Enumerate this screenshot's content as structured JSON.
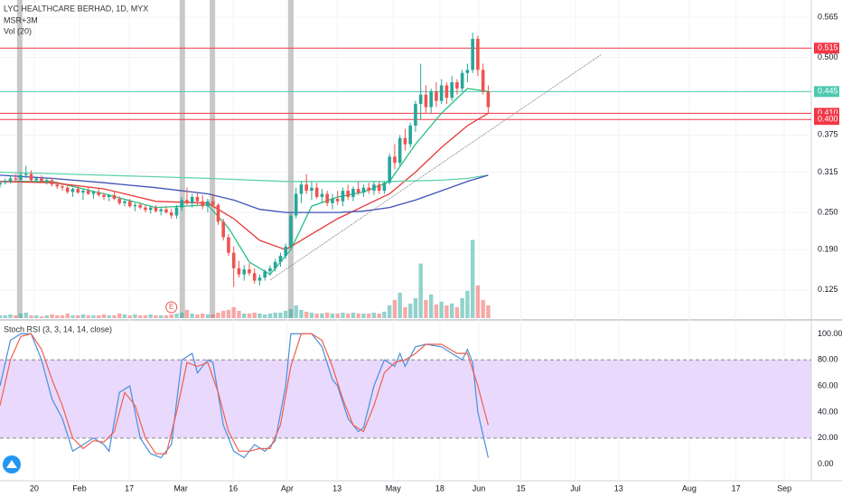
{
  "chart_data": [
    {
      "type": "candlestick",
      "title": "LYC HEALTHCARE BERHAD, 1D, MYX",
      "indicators": [
        "MSR+3M",
        "Vol (20)"
      ],
      "xlim": [
        0,
        156.2
      ],
      "xticks": [
        {
          "value": 6.6,
          "label": "20"
        },
        {
          "value": 15.3,
          "label": "Feb"
        },
        {
          "value": 24.9,
          "label": "17"
        },
        {
          "value": 34.8,
          "label": "Mar"
        },
        {
          "value": 44.9,
          "label": "16"
        },
        {
          "value": 55.3,
          "label": "Apr"
        },
        {
          "value": 64.9,
          "label": "13"
        },
        {
          "value": 75.7,
          "label": "May"
        },
        {
          "value": 84.7,
          "label": "18"
        },
        {
          "value": 92.2,
          "label": "Jun"
        },
        {
          "value": 100.3,
          "label": "15"
        },
        {
          "value": 110.8,
          "label": "Jul"
        },
        {
          "value": 119.1,
          "label": "13"
        },
        {
          "value": 132.7,
          "label": "Aug"
        },
        {
          "value": 141.7,
          "label": "17"
        },
        {
          "value": 151,
          "label": "Sep"
        }
      ],
      "ylim": [
        0.0796,
        0.5927
      ],
      "yticks": [
        0.565,
        {
          "value": 0.5,
          "label": "0.500"
        },
        0.375,
        0.315,
        {
          "value": 0.25,
          "label": "0.250"
        },
        {
          "value": 0.19,
          "label": "0.190"
        },
        0.125
      ],
      "up_color": "#26a69a",
      "down_color": "#ef5350",
      "x": [
        0,
        1,
        2,
        3,
        4,
        5,
        6,
        7,
        8,
        9,
        10,
        11,
        12,
        13,
        14,
        15,
        16,
        17,
        18,
        19,
        20,
        21,
        22,
        23,
        24,
        25,
        26,
        27,
        28,
        29,
        30,
        31,
        32,
        33,
        34,
        35,
        36,
        37,
        38,
        39,
        40,
        41,
        42,
        43,
        44,
        45,
        46,
        47,
        48,
        49,
        50,
        51,
        52,
        53,
        54,
        55,
        56,
        57,
        58,
        59,
        60,
        61,
        62,
        63,
        64,
        65,
        66,
        67,
        68,
        69,
        70,
        71,
        72,
        73,
        74,
        75,
        76,
        77,
        78,
        79,
        80,
        81,
        82,
        83,
        84,
        85,
        86,
        87,
        88,
        89,
        90,
        91,
        92,
        93,
        94
      ],
      "ohlc": [
        [
          0.295,
          0.3,
          0.29,
          0.298
        ],
        [
          0.298,
          0.305,
          0.295,
          0.3
        ],
        [
          0.3,
          0.31,
          0.297,
          0.305
        ],
        [
          0.305,
          0.312,
          0.3,
          0.303
        ],
        [
          0.303,
          0.315,
          0.298,
          0.31
        ],
        [
          0.31,
          0.325,
          0.305,
          0.312
        ],
        [
          0.312,
          0.318,
          0.3,
          0.302
        ],
        [
          0.302,
          0.308,
          0.298,
          0.305
        ],
        [
          0.305,
          0.31,
          0.3,
          0.3
        ],
        [
          0.3,
          0.305,
          0.295,
          0.302
        ],
        [
          0.302,
          0.306,
          0.292,
          0.295
        ],
        [
          0.295,
          0.3,
          0.288,
          0.292
        ],
        [
          0.292,
          0.298,
          0.285,
          0.29
        ],
        [
          0.29,
          0.295,
          0.28,
          0.283
        ],
        [
          0.283,
          0.29,
          0.275,
          0.288
        ],
        [
          0.288,
          0.292,
          0.28,
          0.282
        ],
        [
          0.282,
          0.288,
          0.27,
          0.285
        ],
        [
          0.285,
          0.29,
          0.278,
          0.28
        ],
        [
          0.28,
          0.285,
          0.272,
          0.283
        ],
        [
          0.283,
          0.288,
          0.275,
          0.278
        ],
        [
          0.278,
          0.282,
          0.27,
          0.275
        ],
        [
          0.275,
          0.28,
          0.268,
          0.278
        ],
        [
          0.278,
          0.283,
          0.27,
          0.272
        ],
        [
          0.272,
          0.276,
          0.262,
          0.265
        ],
        [
          0.265,
          0.272,
          0.26,
          0.268
        ],
        [
          0.268,
          0.272,
          0.258,
          0.26
        ],
        [
          0.26,
          0.265,
          0.252,
          0.262
        ],
        [
          0.262,
          0.266,
          0.255,
          0.258
        ],
        [
          0.258,
          0.262,
          0.25,
          0.254
        ],
        [
          0.254,
          0.26,
          0.248,
          0.258
        ],
        [
          0.258,
          0.262,
          0.25,
          0.252
        ],
        [
          0.252,
          0.258,
          0.245,
          0.255
        ],
        [
          0.255,
          0.26,
          0.248,
          0.25
        ],
        [
          0.25,
          0.256,
          0.24,
          0.245
        ],
        [
          0.245,
          0.262,
          0.24,
          0.258
        ],
        [
          0.258,
          0.275,
          0.252,
          0.27
        ],
        [
          0.27,
          0.29,
          0.262,
          0.265
        ],
        [
          0.265,
          0.28,
          0.258,
          0.275
        ],
        [
          0.275,
          0.282,
          0.262,
          0.268
        ],
        [
          0.268,
          0.278,
          0.255,
          0.26
        ],
        [
          0.26,
          0.272,
          0.25,
          0.268
        ],
        [
          0.268,
          0.28,
          0.258,
          0.262
        ],
        [
          0.262,
          0.265,
          0.23,
          0.235
        ],
        [
          0.235,
          0.24,
          0.205,
          0.21
        ],
        [
          0.21,
          0.215,
          0.18,
          0.185
        ],
        [
          0.185,
          0.195,
          0.13,
          0.16
        ],
        [
          0.16,
          0.172,
          0.145,
          0.15
        ],
        [
          0.15,
          0.165,
          0.14,
          0.158
        ],
        [
          0.158,
          0.168,
          0.148,
          0.152
        ],
        [
          0.152,
          0.16,
          0.135,
          0.14
        ],
        [
          0.14,
          0.15,
          0.132,
          0.145
        ],
        [
          0.145,
          0.158,
          0.14,
          0.155
        ],
        [
          0.155,
          0.165,
          0.148,
          0.16
        ],
        [
          0.16,
          0.175,
          0.155,
          0.17
        ],
        [
          0.17,
          0.185,
          0.162,
          0.18
        ],
        [
          0.18,
          0.2,
          0.175,
          0.195
        ],
        [
          0.195,
          0.25,
          0.19,
          0.245
        ],
        [
          0.245,
          0.29,
          0.24,
          0.28
        ],
        [
          0.28,
          0.3,
          0.265,
          0.295
        ],
        [
          0.295,
          0.312,
          0.28,
          0.285
        ],
        [
          0.285,
          0.3,
          0.27,
          0.29
        ],
        [
          0.29,
          0.298,
          0.272,
          0.275
        ],
        [
          0.275,
          0.288,
          0.265,
          0.28
        ],
        [
          0.28,
          0.285,
          0.26,
          0.265
        ],
        [
          0.265,
          0.28,
          0.255,
          0.272
        ],
        [
          0.272,
          0.285,
          0.262,
          0.268
        ],
        [
          0.268,
          0.29,
          0.26,
          0.285
        ],
        [
          0.285,
          0.295,
          0.27,
          0.275
        ],
        [
          0.275,
          0.292,
          0.268,
          0.288
        ],
        [
          0.288,
          0.3,
          0.278,
          0.282
        ],
        [
          0.282,
          0.295,
          0.275,
          0.29
        ],
        [
          0.29,
          0.298,
          0.28,
          0.285
        ],
        [
          0.285,
          0.3,
          0.278,
          0.295
        ],
        [
          0.295,
          0.3,
          0.28,
          0.285
        ],
        [
          0.285,
          0.3,
          0.28,
          0.298
        ],
        [
          0.298,
          0.345,
          0.295,
          0.34
        ],
        [
          0.34,
          0.36,
          0.32,
          0.33
        ],
        [
          0.33,
          0.375,
          0.325,
          0.37
        ],
        [
          0.37,
          0.385,
          0.35,
          0.36
        ],
        [
          0.36,
          0.395,
          0.355,
          0.39
        ],
        [
          0.39,
          0.43,
          0.38,
          0.425
        ],
        [
          0.425,
          0.49,
          0.4,
          0.44
        ],
        [
          0.44,
          0.455,
          0.41,
          0.42
        ],
        [
          0.42,
          0.45,
          0.41,
          0.445
        ],
        [
          0.445,
          0.46,
          0.42,
          0.43
        ],
        [
          0.43,
          0.465,
          0.425,
          0.455
        ],
        [
          0.455,
          0.46,
          0.425,
          0.435
        ],
        [
          0.435,
          0.47,
          0.43,
          0.46
        ],
        [
          0.46,
          0.465,
          0.44,
          0.45
        ],
        [
          0.45,
          0.48,
          0.445,
          0.475
        ],
        [
          0.475,
          0.49,
          0.46,
          0.48
        ],
        [
          0.48,
          0.54,
          0.475,
          0.53
        ],
        [
          0.53,
          0.535,
          0.47,
          0.48
        ],
        [
          0.48,
          0.49,
          0.44,
          0.445
        ],
        [
          0.445,
          0.455,
          0.41,
          0.42
        ]
      ],
      "volume_lim": [
        0,
        350
      ],
      "volume": [
        3,
        3,
        4,
        3,
        5,
        6,
        3,
        3,
        2,
        3,
        4,
        3,
        3,
        5,
        3,
        3,
        4,
        3,
        3,
        3,
        4,
        3,
        3,
        5,
        4,
        3,
        4,
        3,
        3,
        4,
        3,
        3,
        3,
        4,
        5,
        6,
        9,
        5,
        4,
        5,
        4,
        4,
        6,
        8,
        9,
        12,
        8,
        5,
        5,
        6,
        5,
        4,
        5,
        6,
        6,
        8,
        10,
        14,
        9,
        7,
        6,
        5,
        5,
        6,
        5,
        5,
        6,
        5,
        6,
        5,
        5,
        5,
        6,
        5,
        7,
        14,
        20,
        28,
        12,
        16,
        22,
        60,
        20,
        26,
        15,
        18,
        14,
        16,
        12,
        22,
        30,
        86,
        36,
        20,
        14
      ],
      "ma": [
        {
          "color": "#26c281",
          "x": [
            0,
            10,
            20,
            30,
            40,
            44,
            48,
            52,
            56,
            60,
            65,
            70,
            75,
            80,
            85,
            90,
            94
          ],
          "values": [
            0.3,
            0.3,
            0.28,
            0.258,
            0.262,
            0.225,
            0.17,
            0.15,
            0.19,
            0.26,
            0.275,
            0.283,
            0.3,
            0.36,
            0.41,
            0.45,
            0.445
          ]
        },
        {
          "color": "#e53935",
          "x": [
            0,
            10,
            20,
            30,
            40,
            45,
            50,
            55,
            60,
            65,
            70,
            75,
            80,
            85,
            90,
            94
          ],
          "values": [
            0.3,
            0.298,
            0.288,
            0.268,
            0.265,
            0.24,
            0.205,
            0.19,
            0.215,
            0.24,
            0.26,
            0.28,
            0.315,
            0.355,
            0.39,
            0.41
          ]
        },
        {
          "color": "#5fd3a8",
          "x": [
            0,
            20,
            40,
            55,
            65,
            75,
            85,
            90,
            94
          ],
          "values": [
            0.315,
            0.31,
            0.305,
            0.3,
            0.3,
            0.3,
            0.302,
            0.305,
            0.31
          ]
        },
        {
          "color": "#3f51b5",
          "x": [
            0,
            10,
            20,
            30,
            40,
            45,
            50,
            55,
            60,
            65,
            70,
            75,
            80,
            85,
            90,
            94
          ],
          "values": [
            0.31,
            0.305,
            0.298,
            0.29,
            0.28,
            0.27,
            0.255,
            0.25,
            0.25,
            0.25,
            0.252,
            0.258,
            0.27,
            0.285,
            0.3,
            0.31
          ]
        }
      ],
      "trendline": {
        "color": "#888888",
        "x": [
          52,
          115.8
        ],
        "values": [
          0.141,
          0.505
        ]
      },
      "levels": [
        {
          "value": 0.515,
          "label": "0.515",
          "color": "#f23645"
        },
        {
          "value": 0.445,
          "label": "0.445",
          "color": "#4ec9b0"
        },
        {
          "value": 0.41,
          "label": "0.410",
          "color": "#f23645"
        },
        {
          "value": 0.4,
          "label": "0.400",
          "color": "#f23645"
        }
      ],
      "highlight_x": [
        3.8,
        35.1,
        40.9,
        56
      ],
      "events": [
        {
          "x": 33,
          "label": "E"
        }
      ]
    },
    {
      "type": "line",
      "title": "Stoch RSI (3, 3, 14, 14, close)",
      "xlim": [
        0,
        156.2
      ],
      "ylim": [
        -12.7,
        109.3
      ],
      "yticks": [
        {
          "value": 100,
          "label": "100.00"
        },
        {
          "value": 80,
          "label": "80.00"
        },
        {
          "value": 60,
          "label": "60.00"
        },
        {
          "value": 40,
          "label": "40.00"
        },
        {
          "value": 20,
          "label": "20.00"
        },
        {
          "value": 0,
          "label": "0.00"
        }
      ],
      "band": [
        20,
        80
      ],
      "band_color": "#e4cffd",
      "series": [
        {
          "color": "#4a90d9",
          "x": [
            0,
            2,
            4,
            6,
            8,
            10,
            12,
            14,
            16,
            18,
            20,
            21,
            23,
            25,
            27,
            29,
            31,
            33,
            35,
            37,
            38,
            40,
            41,
            43,
            45,
            47,
            49,
            51,
            53,
            55,
            56,
            58,
            60,
            62,
            64,
            65,
            67,
            69,
            70,
            72,
            74,
            76,
            77,
            78,
            80,
            82,
            85,
            87,
            89,
            90,
            91,
            92,
            94
          ],
          "values": [
            60,
            95,
            100,
            100,
            80,
            50,
            35,
            10,
            15,
            20,
            15,
            10,
            55,
            60,
            20,
            8,
            5,
            15,
            80,
            85,
            70,
            80,
            78,
            30,
            10,
            5,
            15,
            10,
            18,
            60,
            100,
            100,
            100,
            90,
            65,
            60,
            35,
            25,
            28,
            60,
            80,
            75,
            85,
            75,
            90,
            92,
            90,
            85,
            80,
            88,
            78,
            40,
            5
          ]
        },
        {
          "color": "#f0604d",
          "x": [
            0,
            2,
            4,
            6,
            8,
            10,
            12,
            14,
            16,
            18,
            20,
            22,
            24,
            26,
            28,
            30,
            32,
            34,
            36,
            38,
            40,
            42,
            44,
            46,
            48,
            50,
            52,
            54,
            56,
            58,
            60,
            62,
            64,
            66,
            68,
            70,
            72,
            74,
            76,
            78,
            80,
            82,
            85,
            88,
            90,
            92,
            94
          ],
          "values": [
            45,
            80,
            98,
            100,
            88,
            65,
            45,
            20,
            12,
            18,
            17,
            25,
            55,
            45,
            20,
            8,
            8,
            40,
            78,
            75,
            78,
            55,
            25,
            10,
            10,
            12,
            12,
            30,
            75,
            100,
            100,
            95,
            75,
            50,
            30,
            25,
            45,
            70,
            78,
            80,
            85,
            92,
            92,
            85,
            85,
            60,
            30
          ]
        }
      ]
    }
  ]
}
